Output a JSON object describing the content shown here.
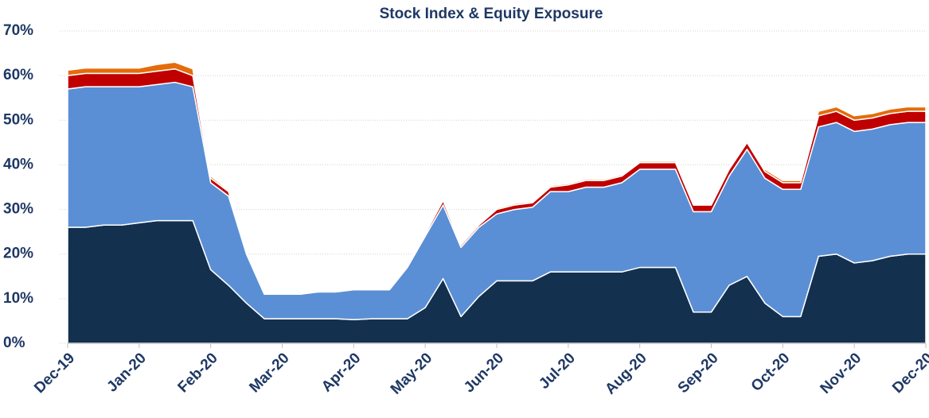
{
  "chart_data": {
    "type": "stacked_area",
    "title": "Stock Index & Equity Exposure",
    "categories": [
      "Dec-19",
      null,
      null,
      null,
      "Jan-20",
      null,
      null,
      null,
      "Feb-20",
      null,
      null,
      null,
      "Mar-20",
      null,
      null,
      null,
      "Apr-20",
      null,
      null,
      null,
      "May-20",
      null,
      null,
      null,
      "Jun-20",
      null,
      null,
      null,
      "Jul-20",
      null,
      null,
      null,
      "Aug-20",
      null,
      null,
      null,
      "Sep-20",
      null,
      null,
      null,
      "Oct-20",
      null,
      null,
      null,
      "Nov-20",
      null,
      null,
      null,
      "Dec-20"
    ],
    "series": [
      {
        "name": "Navy",
        "color": "#14304f",
        "values": [
          26,
          26,
          26.5,
          26.5,
          27,
          27.5,
          27.5,
          27.5,
          16.5,
          13,
          9,
          5.5,
          5.5,
          5.5,
          5.5,
          5.5,
          5.3,
          5.5,
          5.5,
          5.5,
          8,
          14.5,
          6,
          10.5,
          14,
          14,
          14,
          16,
          16,
          16,
          16,
          16,
          17,
          17,
          17,
          7,
          7,
          13,
          15,
          9,
          6,
          6,
          19.5,
          20,
          18,
          18.5,
          19.5,
          20,
          20
        ]
      },
      {
        "name": "Blue",
        "color": "#5a8fd5",
        "values": [
          31,
          31.5,
          31,
          31,
          30.5,
          30.5,
          31,
          30,
          19.5,
          20,
          11,
          5.5,
          5.5,
          5.5,
          6,
          6,
          6.7,
          6.5,
          6.5,
          11.5,
          16,
          16.5,
          15.5,
          15.5,
          15,
          16,
          16.5,
          18,
          18,
          19,
          19,
          20,
          22,
          22,
          22,
          22.5,
          22.5,
          24.5,
          28.5,
          28,
          28.5,
          28.5,
          29,
          29.5,
          29.5,
          29.5,
          29.5,
          29.5,
          29.5
        ]
      },
      {
        "name": "Red",
        "color": "#c00000",
        "values": [
          3,
          3,
          3,
          3,
          3,
          3,
          3,
          2.5,
          1,
          1,
          0.3,
          0.2,
          0.2,
          0.2,
          0.2,
          0.2,
          0.2,
          0.2,
          0.2,
          0.2,
          0.5,
          1,
          0.5,
          0.5,
          1,
          1,
          1,
          1,
          1.5,
          1.5,
          1.5,
          1.5,
          1.5,
          1.5,
          1.5,
          1.5,
          1.5,
          1.5,
          1.5,
          1.5,
          1.5,
          1.5,
          2.5,
          2.5,
          2.5,
          2.5,
          2.5,
          2.5,
          2.5
        ]
      },
      {
        "name": "Orange",
        "color": "#e46c0a",
        "values": [
          1.2,
          1.2,
          1.2,
          1.2,
          1.2,
          1.5,
          1.5,
          1.5,
          0.5,
          0.3,
          0.1,
          0.1,
          0.1,
          0.1,
          0.1,
          0.1,
          0.1,
          0.1,
          0.1,
          0.1,
          0.2,
          0.3,
          0.2,
          0.2,
          0.3,
          0.3,
          0.3,
          0.3,
          0.3,
          0.3,
          0.3,
          0.3,
          0.3,
          0.3,
          0.3,
          0.2,
          0.2,
          0.3,
          0.5,
          0.5,
          0.5,
          0.5,
          1,
          1,
          1,
          1,
          1,
          1,
          1
        ]
      }
    ],
    "ylim": [
      0,
      70
    ],
    "yticks": [
      {
        "value": 0,
        "label": "0%"
      },
      {
        "value": 10,
        "label": "10%"
      },
      {
        "value": 20,
        "label": "20%"
      },
      {
        "value": 30,
        "label": "30%"
      },
      {
        "value": 40,
        "label": "40%"
      },
      {
        "value": 50,
        "label": "50%"
      },
      {
        "value": 60,
        "label": "60%"
      },
      {
        "value": 70,
        "label": "70%"
      }
    ],
    "grid": true
  }
}
